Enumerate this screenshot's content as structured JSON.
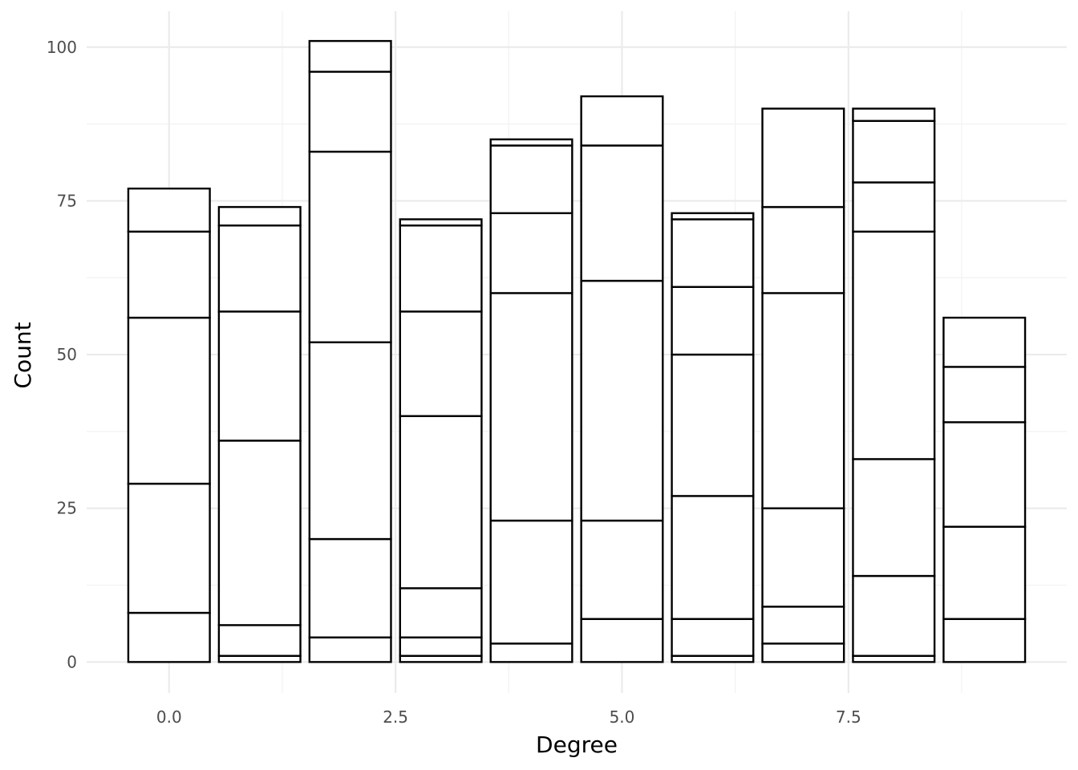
{
  "chart_data": {
    "type": "bar",
    "stacked": true,
    "xlabel": "Degree",
    "ylabel": "Count",
    "xlim": [
      -0.91,
      9.91
    ],
    "ylim": [
      -5.04,
      105.84
    ],
    "x_ticks": [
      0.0,
      2.5,
      5.0,
      7.5
    ],
    "x_tick_labels": [
      "0.0",
      "2.5",
      "5.0",
      "7.5"
    ],
    "y_ticks": [
      0,
      25,
      50,
      75,
      100
    ],
    "y_tick_labels": [
      "0",
      "25",
      "50",
      "75",
      "100"
    ],
    "grid": true,
    "bar_width": 0.9,
    "bar_fill": "#ffffff",
    "bar_stroke": "#000000",
    "grid_major_color": "#ebebeb",
    "grid_minor_color": "#f2f2f2",
    "bars": [
      {
        "x": 0,
        "segments": [
          8,
          21,
          27,
          14,
          7
        ],
        "total": 77
      },
      {
        "x": 1,
        "segments": [
          1,
          5,
          30,
          21,
          14,
          3
        ],
        "total": 74
      },
      {
        "x": 2,
        "segments": [
          4,
          16,
          32,
          31,
          13,
          5
        ],
        "total": 101
      },
      {
        "x": 3,
        "segments": [
          1,
          3,
          8,
          28,
          17,
          14,
          1
        ],
        "total": 72
      },
      {
        "x": 4,
        "segments": [
          3,
          20,
          37,
          13,
          11,
          1
        ],
        "total": 85
      },
      {
        "x": 5,
        "segments": [
          7,
          16,
          39,
          22,
          8
        ],
        "total": 92
      },
      {
        "x": 6,
        "segments": [
          1,
          6,
          20,
          23,
          11,
          11,
          1
        ],
        "total": 73
      },
      {
        "x": 7,
        "segments": [
          3,
          6,
          16,
          35,
          14,
          16
        ],
        "total": 90
      },
      {
        "x": 8,
        "segments": [
          1,
          13,
          19,
          37,
          8,
          10,
          2
        ],
        "total": 90
      },
      {
        "x": 9,
        "segments": [
          7,
          15,
          17,
          9,
          8
        ],
        "total": 56
      }
    ]
  }
}
